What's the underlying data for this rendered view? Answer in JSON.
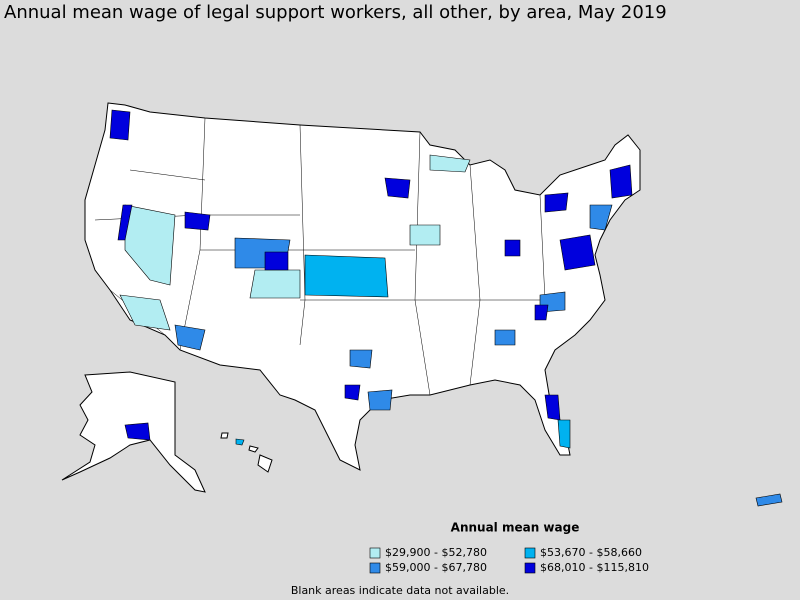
{
  "title": "Annual mean wage of legal support workers, all other, by area, May 2019",
  "legend": {
    "title": "Annual mean wage",
    "items": [
      {
        "label": "$29,900 - $52,780",
        "color": "#b2edf2"
      },
      {
        "label": "$59,000 - $67,780",
        "color": "#2f8ae8"
      },
      {
        "label": "$53,670 - $58,660",
        "color": "#00b2f0"
      },
      {
        "label": "$68,010 - $115,810",
        "color": "#0000dd"
      }
    ]
  },
  "footnote": "Blank areas indicate data not available."
}
